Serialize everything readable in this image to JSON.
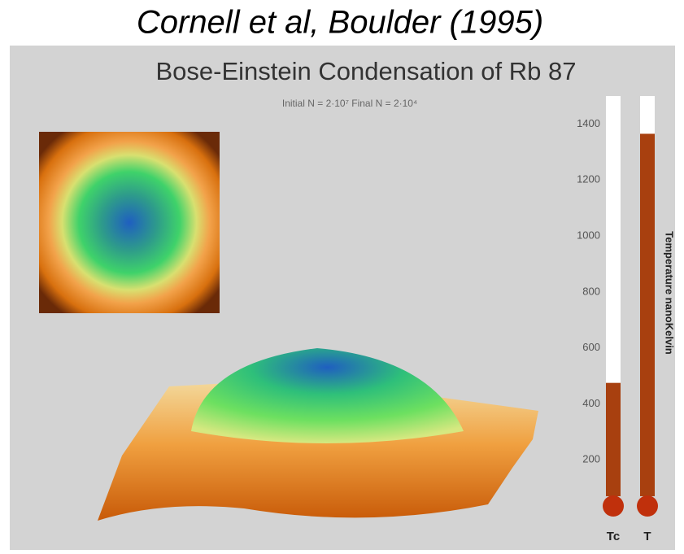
{
  "heading": "Cornell et al, Boulder (1995)",
  "chart_data": {
    "type": "thermometer",
    "title": "Bose-Einstein Condensation of Rb 87",
    "subtitle": "Initial N = 2·10⁷   Final N = 2·10⁴",
    "y_label": "Temperature nanoKelvin",
    "categories": [
      "Tc",
      "T"
    ],
    "values": [
      475,
      1365
    ],
    "color": "#a8400f",
    "ylim": [
      70,
      1500
    ],
    "yticks": [
      200,
      400,
      600,
      800,
      1000,
      1200,
      1400
    ],
    "grid": false
  }
}
